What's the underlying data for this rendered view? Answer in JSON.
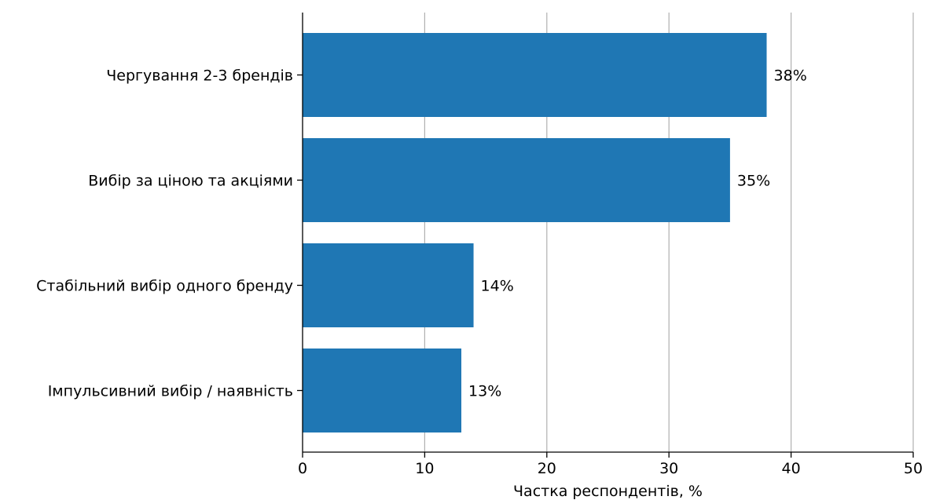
{
  "chart_data": {
    "type": "bar",
    "orientation": "horizontal",
    "categories": [
      "Чергування 2-3 брендів",
      "Вибір за ціною та акціями",
      "Стабільний вибір одного бренду",
      "Імпульсивний вибір / наявність"
    ],
    "values": [
      38,
      35,
      14,
      13
    ],
    "value_labels": [
      "38%",
      "35%",
      "14%",
      "13%"
    ],
    "title": "",
    "xlabel": "Частка респондентів, %",
    "ylabel": "",
    "xlim": [
      0,
      50
    ],
    "xticks": [
      0,
      10,
      20,
      30,
      40,
      50
    ],
    "grid": "vertical",
    "bar_color": "#1f77b4"
  }
}
